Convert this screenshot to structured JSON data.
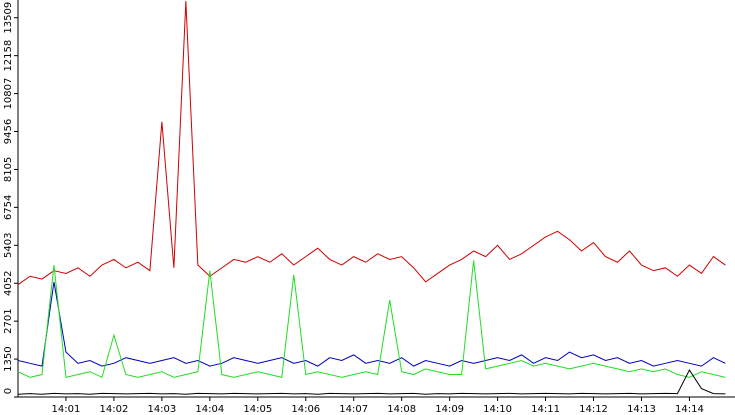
{
  "chart_data": {
    "type": "line",
    "x": [
      0,
      0.25,
      0.5,
      0.75,
      1,
      1.25,
      1.5,
      1.75,
      2,
      2.25,
      2.5,
      2.75,
      3,
      3.25,
      3.5,
      3.75,
      4,
      4.25,
      4.5,
      4.75,
      5,
      5.25,
      5.5,
      5.75,
      6,
      6.25,
      6.5,
      6.75,
      7,
      7.25,
      7.5,
      7.75,
      8,
      8.25,
      8.5,
      8.75,
      9,
      9.25,
      9.5,
      9.75,
      10,
      10.25,
      10.5,
      10.75,
      11,
      11.25,
      11.5,
      11.75,
      12,
      12.25,
      12.5,
      12.75,
      13,
      13.25,
      13.5,
      13.75,
      14,
      14.25,
      14.5,
      14.75
    ],
    "series": [
      {
        "color": "#d00000",
        "values": [
          4000,
          4300,
          4200,
          4500,
          4400,
          4600,
          4300,
          4700,
          4900,
          4600,
          4800,
          4500,
          9800,
          4600,
          14100,
          4700,
          4300,
          4600,
          4900,
          4800,
          5000,
          4800,
          5100,
          4700,
          5000,
          5300,
          4900,
          4700,
          5000,
          4800,
          5100,
          4900,
          5000,
          4600,
          4100,
          4400,
          4700,
          4900,
          5200,
          5000,
          5400,
          4900,
          5100,
          5400,
          5700,
          5900,
          5600,
          5200,
          5500,
          5000,
          4800,
          5200,
          4700,
          4500,
          4600,
          4300,
          4700,
          4400,
          5000,
          4700
        ]
      },
      {
        "color": "#0000c0",
        "values": [
          1300,
          1200,
          1100,
          4100,
          1600,
          1200,
          1300,
          1100,
          1200,
          1400,
          1300,
          1200,
          1300,
          1400,
          1200,
          1300,
          1100,
          1200,
          1400,
          1300,
          1200,
          1300,
          1400,
          1200,
          1300,
          1100,
          1400,
          1300,
          1500,
          1200,
          1300,
          1200,
          1400,
          1100,
          1300,
          1200,
          1100,
          1300,
          1200,
          1300,
          1400,
          1300,
          1500,
          1200,
          1400,
          1300,
          1600,
          1400,
          1500,
          1300,
          1400,
          1200,
          1300,
          1100,
          1200,
          1300,
          1200,
          1100,
          1400,
          1200
        ]
      },
      {
        "color": "#22dd22",
        "values": [
          900,
          700,
          800,
          4700,
          700,
          800,
          900,
          700,
          2200,
          800,
          700,
          800,
          900,
          700,
          800,
          900,
          4500,
          800,
          700,
          800,
          900,
          800,
          700,
          4350,
          800,
          900,
          800,
          700,
          800,
          900,
          800,
          3450,
          900,
          800,
          1000,
          900,
          800,
          800,
          4870,
          1000,
          1100,
          1200,
          1300,
          1100,
          1200,
          1100,
          1000,
          1100,
          1200,
          1100,
          1000,
          900,
          1000,
          900,
          1000,
          800,
          700,
          900,
          800,
          700
        ]
      },
      {
        "color": "#000000",
        "values": [
          100,
          120,
          100,
          130,
          110,
          120,
          100,
          130,
          120,
          110,
          120,
          130,
          110,
          120,
          100,
          130,
          120,
          110,
          130,
          120,
          110,
          120,
          130,
          110,
          120,
          100,
          130,
          120,
          110,
          120,
          130,
          110,
          120,
          130,
          100,
          120,
          110,
          130,
          120,
          110,
          120,
          130,
          110,
          120,
          130,
          120,
          110,
          130,
          120,
          110,
          120,
          130,
          110,
          120,
          130,
          120,
          960,
          300,
          120,
          110
        ]
      }
    ],
    "xlim": [
      0,
      14.95
    ],
    "xticks": [
      {
        "value": 1,
        "label": "14:01"
      },
      {
        "value": 2,
        "label": "14:02"
      },
      {
        "value": 3,
        "label": "14:03"
      },
      {
        "value": 4,
        "label": "14:04"
      },
      {
        "value": 5,
        "label": "14:05"
      },
      {
        "value": 6,
        "label": "14:06"
      },
      {
        "value": 7,
        "label": "14:07"
      },
      {
        "value": 8,
        "label": "14:08"
      },
      {
        "value": 9,
        "label": "14:09"
      },
      {
        "value": 10,
        "label": "14:10"
      },
      {
        "value": 11,
        "label": "14:11"
      },
      {
        "value": 12,
        "label": "14:12"
      },
      {
        "value": 13,
        "label": "14:13"
      },
      {
        "value": 14,
        "label": "14:14"
      }
    ],
    "ylim": [
      0,
      14140
    ],
    "yticks": [
      0,
      1350,
      2701,
      4052,
      5403,
      6754,
      8105,
      9456,
      10807,
      12158,
      13509
    ]
  }
}
